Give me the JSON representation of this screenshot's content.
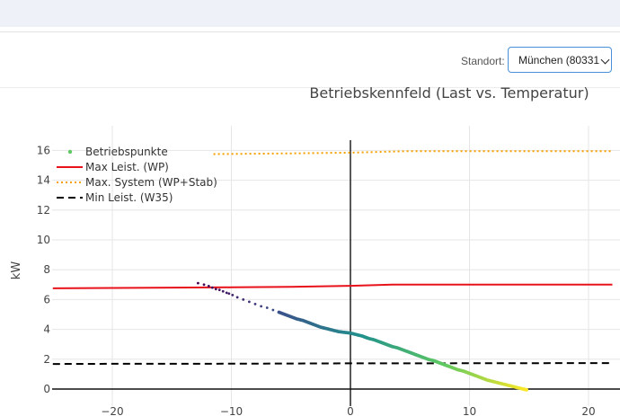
{
  "header": {
    "standort_label": "Standort:",
    "standort_value": "München (80331"
  },
  "chart_data": {
    "type": "scatter",
    "title": "Betriebskennfeld (Last vs. Temperatur)",
    "ylabel": "kW",
    "xlabel": "",
    "xlim": [
      -25,
      22
    ],
    "ylim": [
      -0.5,
      17
    ],
    "x_ticks": [
      -20,
      -10,
      0,
      10,
      20
    ],
    "x_tick_labels": [
      "−20",
      "−10",
      "0",
      "10",
      "20"
    ],
    "y_ticks": [
      0,
      2,
      4,
      6,
      8,
      10,
      12,
      14,
      16
    ],
    "y_tick_labels": [
      "0",
      "2",
      "4",
      "6",
      "8",
      "10",
      "12",
      "14",
      "16"
    ],
    "grid": true,
    "legend_position": "top-left",
    "colors": {
      "max_leist": "#e8121a",
      "max_system": "#f5a000",
      "min_leist": "#000000",
      "scatter_low": "#fde725",
      "scatter_mid": "#21918c",
      "scatter_high": "#440154"
    },
    "series": [
      {
        "name": "Betriebspunkte",
        "kind": "markers",
        "x": [
          -12.8,
          -12.3,
          -11.9,
          -11.6,
          -11.3,
          -11.0,
          -10.7,
          -10.4,
          -10.2,
          -9.9,
          -9.5,
          -9.0,
          -8.5,
          -8.0,
          -7.5,
          -7.0,
          -6.5,
          -6.0,
          -5.5,
          -5.0,
          -4.5,
          -4.0,
          -3.5,
          -3.0,
          -2.5,
          -2.0,
          -1.5,
          -1.0,
          -0.5,
          0.0,
          0.5,
          1.0,
          1.5,
          2.0,
          2.5,
          3.0,
          3.5,
          4.0,
          4.5,
          5.0,
          5.5,
          6.0,
          6.5,
          7.0,
          7.5,
          8.0,
          8.5,
          9.0,
          9.5,
          10.0,
          10.5,
          11.0,
          11.5,
          12.0,
          12.5,
          13.0,
          13.5,
          14.0,
          14.5,
          14.8
        ],
        "y": [
          7.1,
          7.0,
          6.9,
          6.8,
          6.7,
          6.65,
          6.55,
          6.45,
          6.4,
          6.3,
          6.15,
          6.0,
          5.85,
          5.7,
          5.55,
          5.45,
          5.3,
          5.15,
          5.0,
          4.85,
          4.7,
          4.6,
          4.45,
          4.3,
          4.15,
          4.05,
          3.95,
          3.85,
          3.8,
          3.75,
          3.65,
          3.55,
          3.4,
          3.3,
          3.15,
          3.0,
          2.85,
          2.75,
          2.6,
          2.45,
          2.3,
          2.15,
          2.0,
          1.9,
          1.75,
          1.6,
          1.45,
          1.3,
          1.2,
          1.05,
          0.9,
          0.75,
          0.6,
          0.5,
          0.4,
          0.3,
          0.2,
          0.1,
          0.0,
          -0.05
        ]
      },
      {
        "name": "Max Leist. (WP)",
        "kind": "line",
        "x": [
          -25,
          -20,
          -15,
          -10,
          -5,
          0,
          3.5,
          10,
          15,
          22
        ],
        "y": [
          6.75,
          6.78,
          6.8,
          6.82,
          6.85,
          6.92,
          7.0,
          7.0,
          7.0,
          7.0
        ]
      },
      {
        "name": "Max. System (WP+Stab)",
        "kind": "dotted-line",
        "x": [
          -11.5,
          -5,
          0,
          5,
          10,
          15,
          22
        ],
        "y": [
          15.75,
          15.8,
          15.85,
          15.95,
          15.95,
          15.95,
          15.95
        ]
      },
      {
        "name": "Min Leist. (W35)",
        "kind": "dashed-line",
        "x": [
          -25,
          -20,
          -10,
          0,
          10,
          22
        ],
        "y": [
          1.68,
          1.69,
          1.7,
          1.72,
          1.73,
          1.74
        ]
      }
    ]
  }
}
